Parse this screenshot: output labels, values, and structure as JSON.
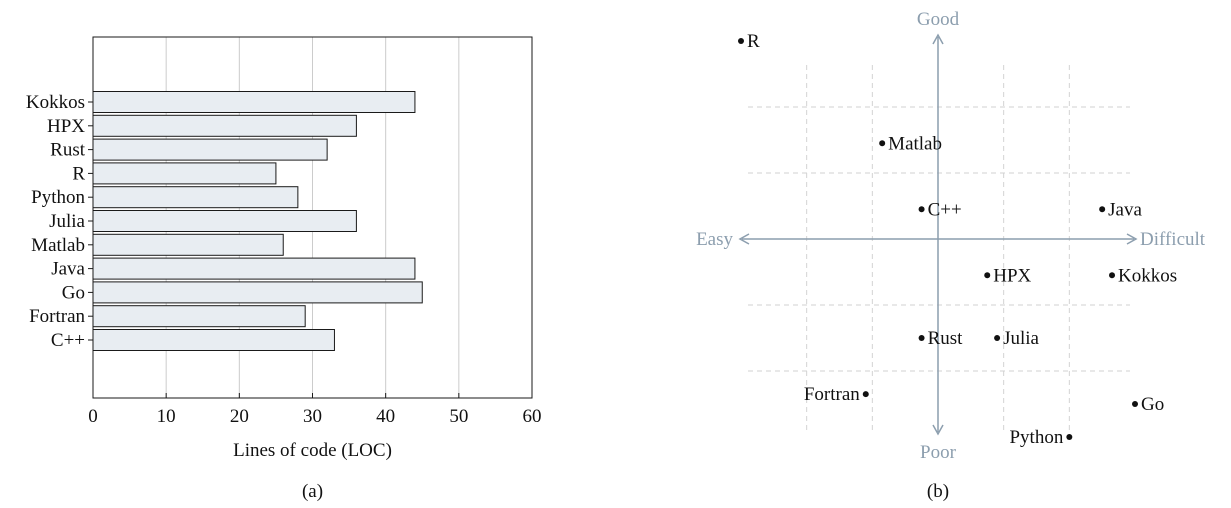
{
  "colors": {
    "bar_fill": "#e8edf2",
    "bar_stroke": "#1a1a1a",
    "grid": "#cccccc",
    "quadrant_axis": "#8c9eae",
    "quadrant_grid": "#d2d2d2"
  },
  "chart_data": [
    {
      "type": "bar",
      "orientation": "horizontal",
      "caption": "(a)",
      "xlabel": "Lines of code (LOC)",
      "ylabel": "",
      "xlim": [
        0,
        60
      ],
      "xticks": [
        0,
        10,
        20,
        30,
        40,
        50,
        60
      ],
      "grid": "vertical",
      "categories": [
        "Kokkos",
        "HPX",
        "Rust",
        "R",
        "Python",
        "Julia",
        "Matlab",
        "Java",
        "Go",
        "Fortran",
        "C++"
      ],
      "values": [
        44,
        36,
        32,
        25,
        28,
        36,
        26,
        44,
        45,
        29,
        33
      ]
    },
    {
      "type": "scatter",
      "caption": "(b)",
      "axis_labels": {
        "top": "Good",
        "bottom": "Poor",
        "left": "Easy",
        "right": "Difficult"
      },
      "xlim": [
        -6,
        6
      ],
      "ylim": [
        -6,
        6
      ],
      "grid": "dashed",
      "points": [
        {
          "label": "R",
          "x": -6.0,
          "y": 6.0,
          "label_side": "right"
        },
        {
          "label": "Matlab",
          "x": -1.7,
          "y": 2.9,
          "label_side": "right"
        },
        {
          "label": "C++",
          "x": -0.5,
          "y": 0.9,
          "label_side": "right"
        },
        {
          "label": "Java",
          "x": 5.0,
          "y": 0.9,
          "label_side": "right"
        },
        {
          "label": "HPX",
          "x": 1.5,
          "y": -1.1,
          "label_side": "right"
        },
        {
          "label": "Kokkos",
          "x": 5.3,
          "y": -1.1,
          "label_side": "right"
        },
        {
          "label": "Rust",
          "x": -0.5,
          "y": -3.0,
          "label_side": "right"
        },
        {
          "label": "Julia",
          "x": 1.8,
          "y": -3.0,
          "label_side": "right"
        },
        {
          "label": "Fortran",
          "x": -2.2,
          "y": -4.7,
          "label_side": "left"
        },
        {
          "label": "Go",
          "x": 6.0,
          "y": -5.0,
          "label_side": "right"
        },
        {
          "label": "Python",
          "x": 4.0,
          "y": -6.0,
          "label_side": "left"
        }
      ]
    }
  ]
}
